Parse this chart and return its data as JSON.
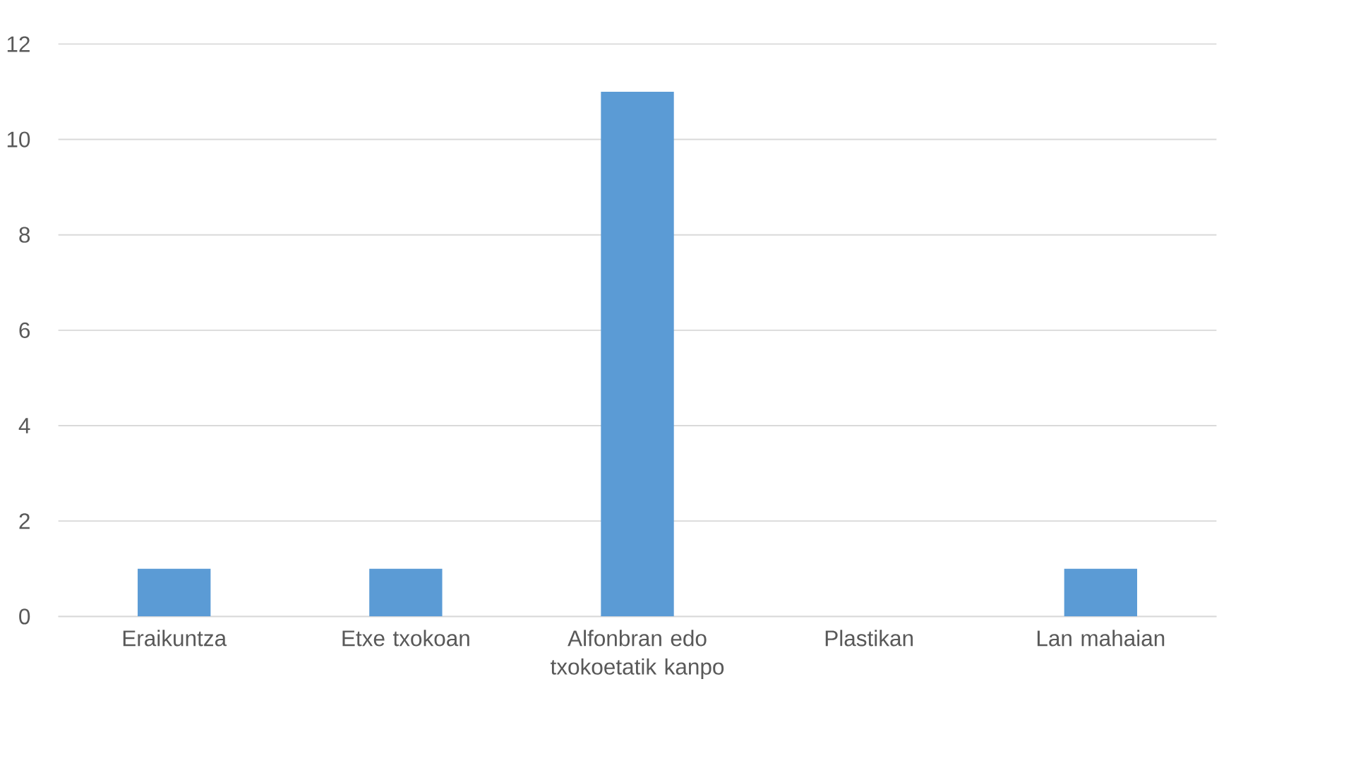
{
  "chart_data": {
    "type": "bar",
    "categories": [
      "Eraikuntza",
      "Etxe txokoan",
      "Alfonbran edo txokoetatik kanpo",
      "Plastikan",
      "Lan mahaian"
    ],
    "values": [
      1,
      1,
      11,
      0,
      1
    ],
    "color": "#5b9bd5",
    "ylim": [
      0,
      12
    ],
    "yticks": [
      0,
      2,
      4,
      6,
      8,
      10,
      12
    ],
    "grid": "y"
  }
}
